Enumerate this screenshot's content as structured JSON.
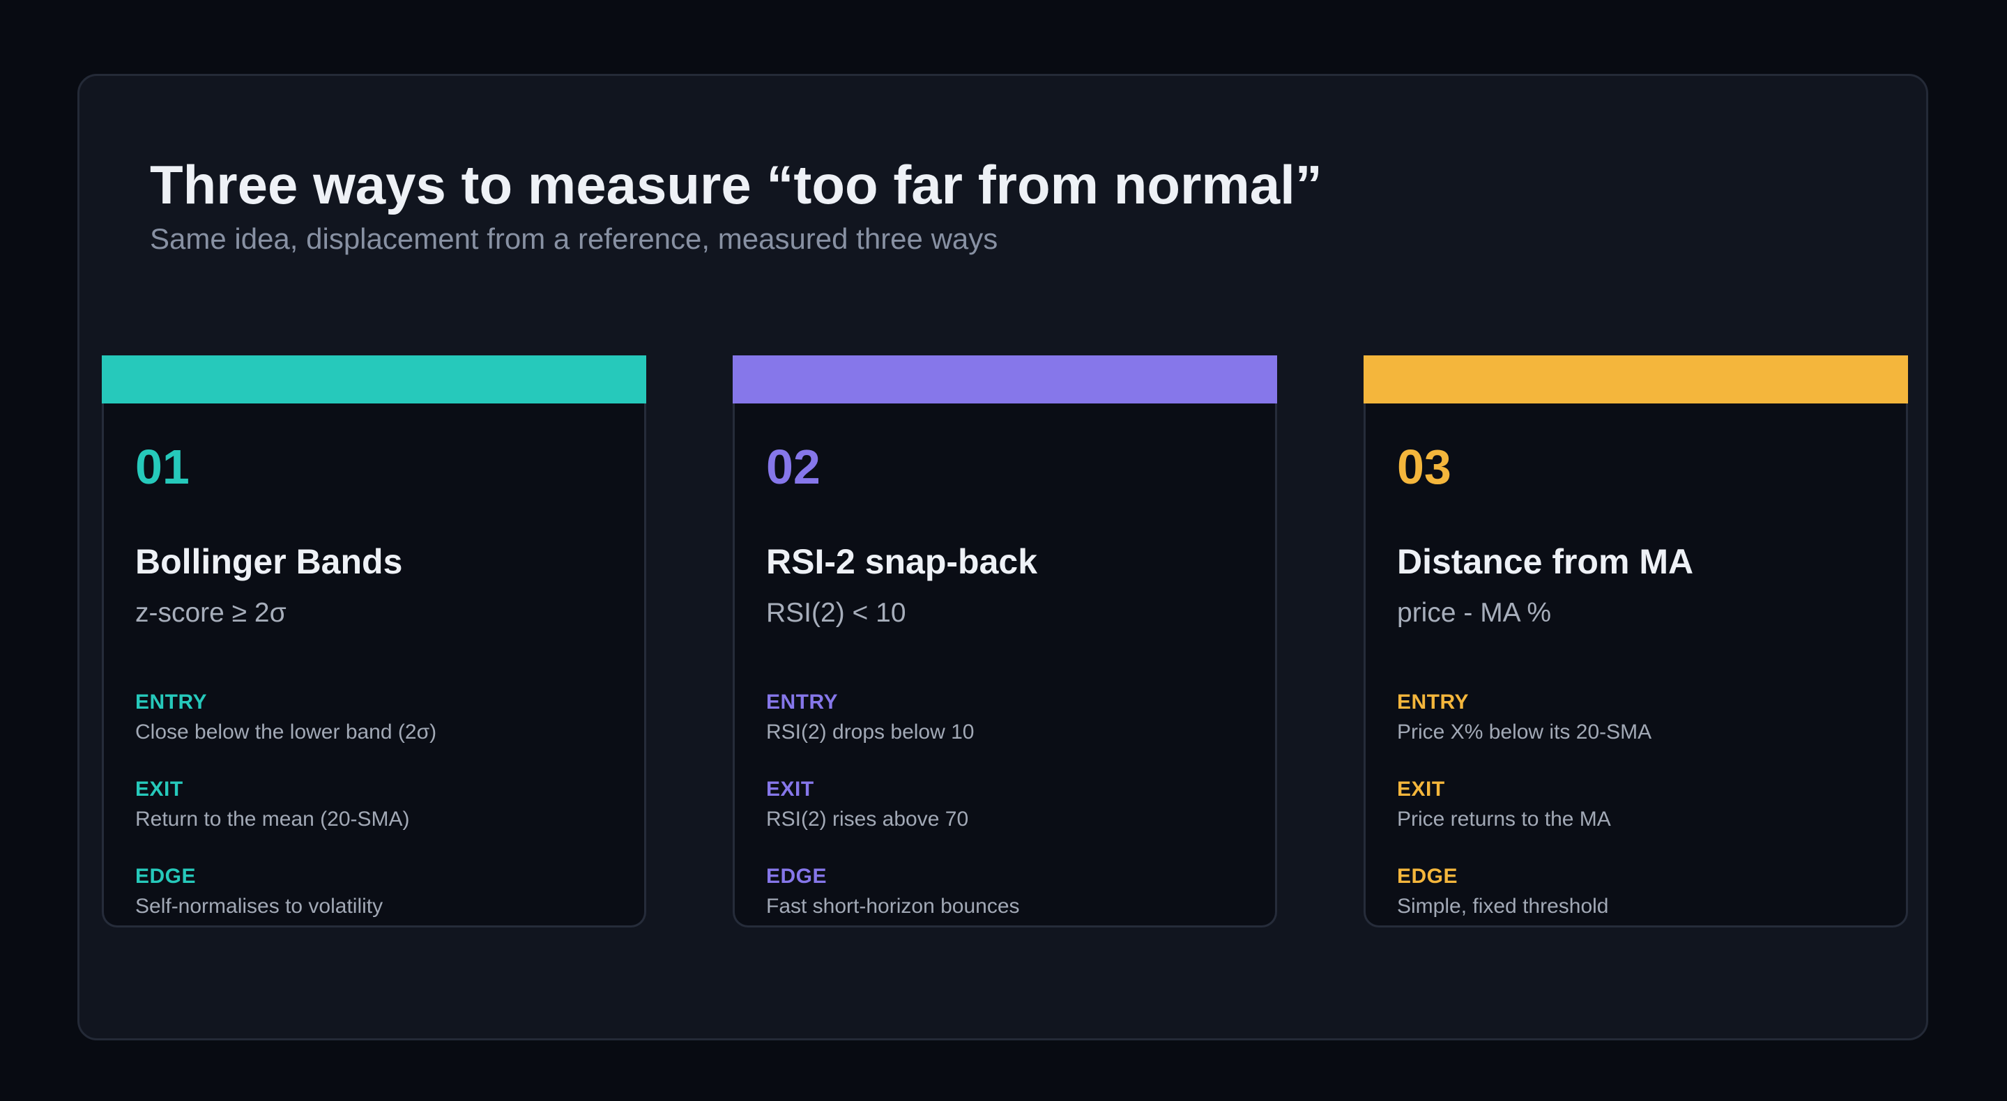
{
  "title": "Three ways to measure “too far from normal”",
  "subtitle": "Same idea, displacement from a reference, measured three ways",
  "cards": [
    {
      "number": "01",
      "name": "Bollinger Bands",
      "formula": "z-score ≥ 2σ",
      "accent": "#26c9bb",
      "entry_label": "ENTRY",
      "entry_text": "Close below the lower band (2σ)",
      "exit_label": "EXIT",
      "exit_text": "Return to the mean (20-SMA)",
      "edge_label": "EDGE",
      "edge_text": "Self-normalises to volatility"
    },
    {
      "number": "02",
      "name": "RSI-2 snap-back",
      "formula": "RSI(2) < 10",
      "accent": "#8677ea",
      "entry_label": "ENTRY",
      "entry_text": "RSI(2) drops below 10",
      "exit_label": "EXIT",
      "exit_text": "RSI(2) rises above 70",
      "edge_label": "EDGE",
      "edge_text": "Fast short-horizon bounces"
    },
    {
      "number": "03",
      "name": "Distance from MA",
      "formula": "price - MA %",
      "accent": "#f4b63c",
      "entry_label": "ENTRY",
      "entry_text": "Price X% below its 20-SMA",
      "exit_label": "EXIT",
      "exit_text": "Price returns to the MA",
      "edge_label": "EDGE",
      "edge_text": "Simple, fixed threshold"
    }
  ]
}
